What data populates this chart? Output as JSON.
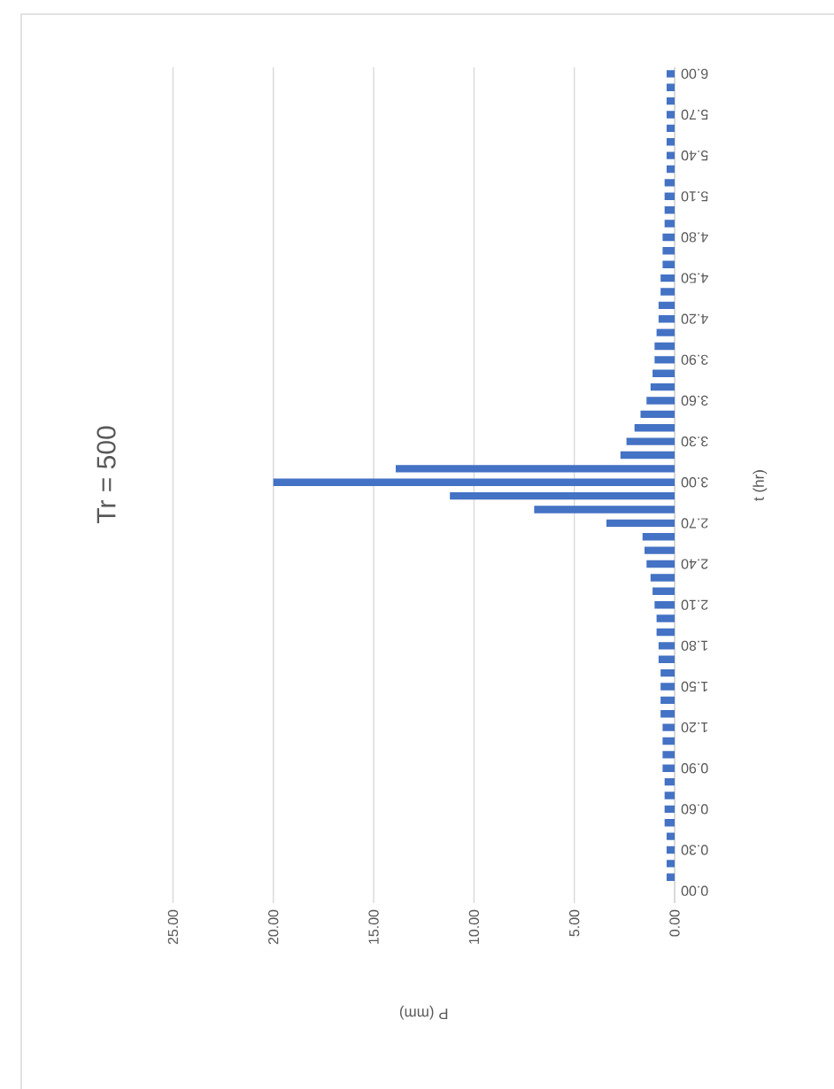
{
  "chart_data": {
    "type": "bar",
    "orientation": "horizontal",
    "title": "Tr = 500",
    "xlabel": "P (mm)",
    "ylabel": "t (hr)",
    "categories": [
      "6.00",
      null,
      null,
      "5.70",
      null,
      null,
      "5.40",
      null,
      null,
      "5.10",
      null,
      null,
      "4.80",
      null,
      null,
      "4.50",
      null,
      null,
      "4.20",
      null,
      null,
      "3.90",
      null,
      null,
      "3.60",
      null,
      null,
      "3.30",
      null,
      null,
      "3.00",
      null,
      null,
      "2.70",
      null,
      null,
      "2.40",
      null,
      null,
      "2.10",
      null,
      null,
      "1.80",
      null,
      null,
      "1.50",
      null,
      null,
      "1.20",
      null,
      null,
      "0.90",
      null,
      null,
      "0.60",
      null,
      null,
      "0.30",
      null,
      null,
      "0.00"
    ],
    "values": [
      0.4,
      0.4,
      0.4,
      0.4,
      0.4,
      0.4,
      0.4,
      0.4,
      0.5,
      0.5,
      0.5,
      0.5,
      0.6,
      0.6,
      0.6,
      0.7,
      0.7,
      0.8,
      0.8,
      0.9,
      1.0,
      1.0,
      1.1,
      1.2,
      1.4,
      1.7,
      2.0,
      2.4,
      2.7,
      13.9,
      20.0,
      11.2,
      7.0,
      3.4,
      1.6,
      1.5,
      1.4,
      1.2,
      1.1,
      1.0,
      0.9,
      0.9,
      0.8,
      0.8,
      0.7,
      0.7,
      0.7,
      0.7,
      0.6,
      0.6,
      0.6,
      0.6,
      0.5,
      0.5,
      0.5,
      0.5,
      0.4,
      0.4,
      0.4,
      0.4,
      null
    ],
    "color": "#4472c4",
    "xlim": [
      25,
      0
    ],
    "xticks": [
      {
        "value": 25,
        "label": "25.00"
      },
      {
        "value": 20,
        "label": "20.00"
      },
      {
        "value": 15,
        "label": "15.00"
      },
      {
        "value": 10,
        "label": "10.00"
      },
      {
        "value": 5,
        "label": "5.00"
      },
      {
        "value": 0,
        "label": "0.00"
      }
    ],
    "grid": "x"
  }
}
